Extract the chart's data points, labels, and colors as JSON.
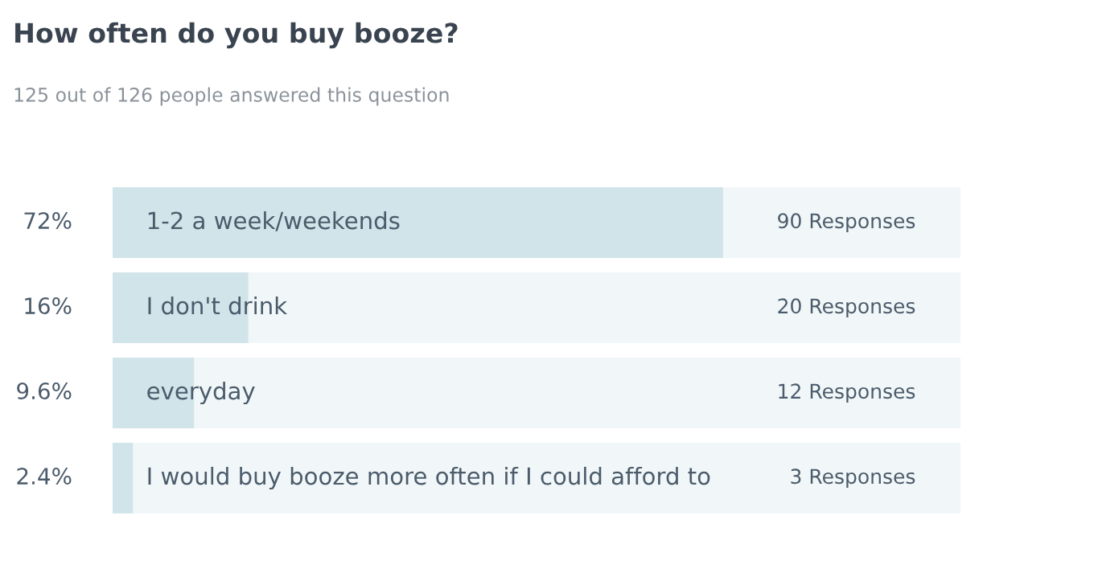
{
  "chart_data": {
    "type": "bar",
    "orientation": "horizontal",
    "title": "How often do you buy booze?",
    "subtitle": "125 out of 126 people answered this question",
    "categories": [
      "1-2 a week/weekends",
      "I don't drink",
      "everyday",
      "I would buy booze more often if I could afford to"
    ],
    "values": [
      72,
      16,
      9.6,
      2.4
    ],
    "color": "#d1e4e9",
    "value_labels": [
      "72%",
      "16%",
      "9.6%",
      "2.4%"
    ],
    "annotations": [
      "90 Responses",
      "20 Responses",
      "12 Responses",
      "3 Responses"
    ],
    "xlim": [
      0,
      100
    ]
  }
}
